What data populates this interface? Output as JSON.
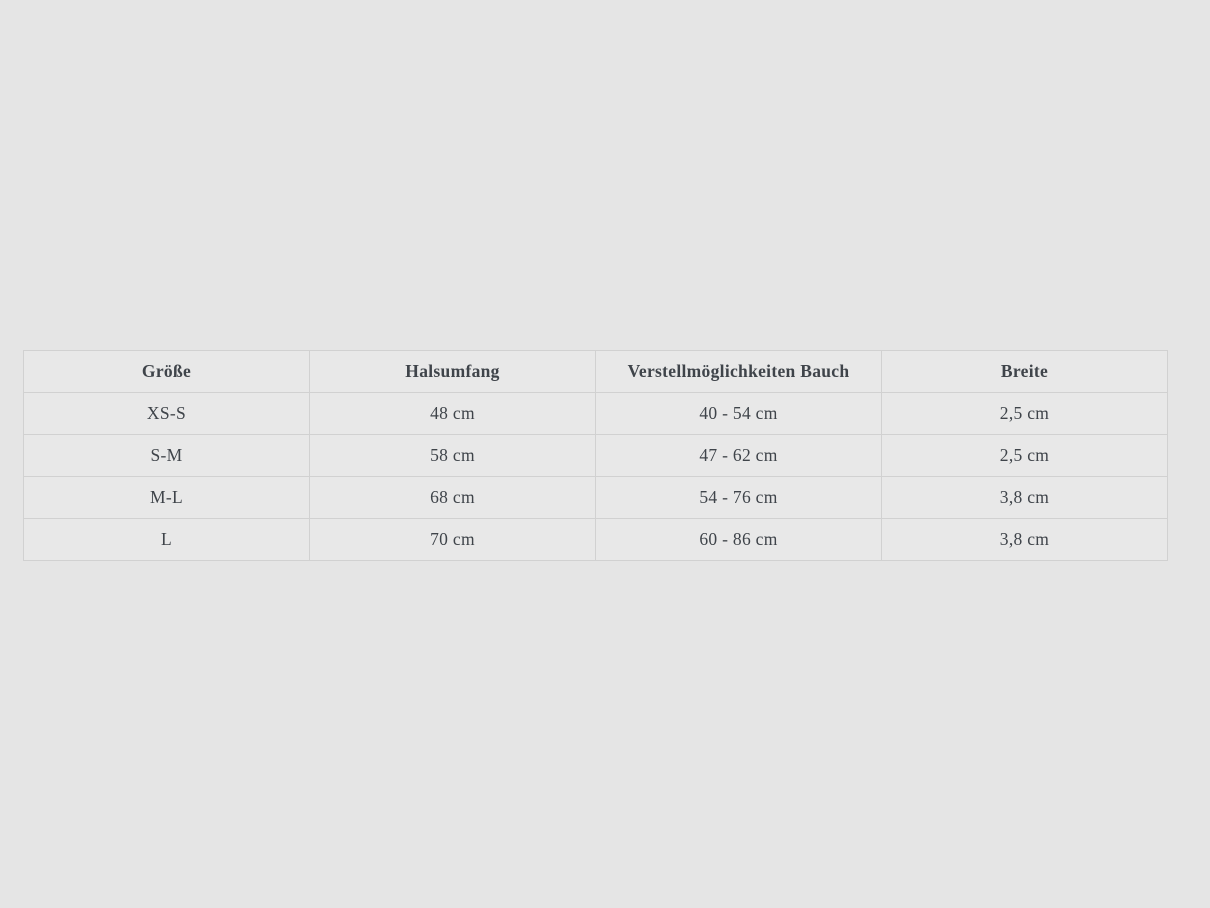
{
  "page": {
    "background_color": "#e5e5e5"
  },
  "size_table": {
    "columns": [
      "Größe",
      "Halsumfang",
      "Verstellmöglichkeiten Bauch",
      "Breite"
    ],
    "rows": [
      {
        "groesse": "XS-S",
        "halsumfang": "48 cm",
        "verstellmoeglichkeiten_bauch": "40 - 54 cm",
        "breite": "2,5 cm"
      },
      {
        "groesse": "S-M",
        "halsumfang": "58 cm",
        "verstellmoeglichkeiten_bauch": "47 - 62 cm",
        "breite": "2,5 cm"
      },
      {
        "groesse": "M-L",
        "halsumfang": "68 cm",
        "verstellmoeglichkeiten_bauch": "54 - 76 cm",
        "breite": "3,8 cm"
      },
      {
        "groesse": "L",
        "halsumfang": "70 cm",
        "verstellmoeglichkeiten_bauch": "60 - 86 cm",
        "breite": "3,8 cm"
      }
    ],
    "colors": {
      "text": "#3f444a",
      "border": "#d1d1d1",
      "cell_background": "#e8e8e8"
    }
  }
}
